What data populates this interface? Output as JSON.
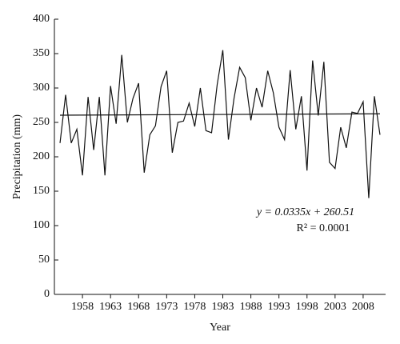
{
  "chart_data": {
    "type": "line",
    "x_label": "Year",
    "y_label": "Precipitation (mm)",
    "x": [
      1954,
      1955,
      1956,
      1957,
      1958,
      1959,
      1960,
      1961,
      1962,
      1963,
      1964,
      1965,
      1966,
      1967,
      1968,
      1969,
      1970,
      1971,
      1972,
      1973,
      1974,
      1975,
      1976,
      1977,
      1978,
      1979,
      1980,
      1981,
      1982,
      1983,
      1984,
      1985,
      1986,
      1987,
      1988,
      1989,
      1990,
      1991,
      1992,
      1993,
      1994,
      1995,
      1996,
      1997,
      1998,
      1999,
      2000,
      2001,
      2002,
      2003,
      2004,
      2005,
      2006,
      2007,
      2008,
      2009,
      2010,
      2011
    ],
    "series": [
      {
        "color": "#111111",
        "values": [
          220,
          290,
          220,
          240,
          173,
          287,
          210,
          287,
          173,
          303,
          248,
          348,
          250,
          285,
          307,
          177,
          232,
          245,
          302,
          325,
          206,
          250,
          252,
          278,
          244,
          300,
          238,
          235,
          305,
          355,
          225,
          285,
          330,
          315,
          253,
          300,
          272,
          325,
          293,
          243,
          225,
          326,
          240,
          288,
          180,
          340,
          260,
          338,
          192,
          183,
          243,
          213,
          265,
          263,
          280,
          140,
          288,
          232
        ]
      }
    ],
    "trend": {
      "color": "#111111",
      "x": [
        1954,
        2011
      ],
      "values": [
        260.5,
        262.5
      ]
    },
    "annotations": [
      "y = 0.0335x + 260.51",
      "R² = 0.0001"
    ],
    "xlim": [
      1953,
      2012
    ],
    "ylim": [
      0,
      400
    ],
    "xticks": [
      1958,
      1963,
      1968,
      1973,
      1978,
      1983,
      1988,
      1993,
      1998,
      2003,
      2008
    ],
    "yticks": [
      0,
      50,
      100,
      150,
      200,
      250,
      300,
      350,
      400
    ]
  }
}
